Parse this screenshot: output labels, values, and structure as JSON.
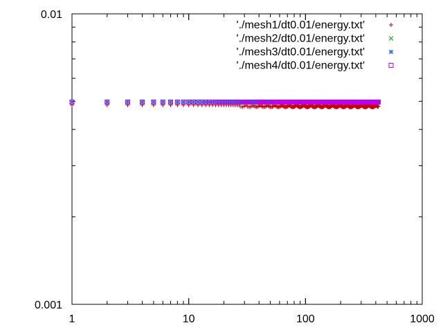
{
  "chart_data": {
    "type": "scatter",
    "x_scale": "log",
    "y_scale": "log",
    "xlim": [
      1,
      1000
    ],
    "ylim": [
      0.001,
      0.01
    ],
    "x_tick_labels": [
      "1",
      "10",
      "100",
      "1000"
    ],
    "x_tick_values": [
      1,
      10,
      100,
      1000
    ],
    "y_tick_labels": [
      "0.001",
      "0.01"
    ],
    "y_tick_values": [
      0.001,
      0.01
    ],
    "grid": false,
    "legend_position": "top-right",
    "series": [
      {
        "name": "'./mesh1/dt0.01/energy.txt'",
        "marker": "plus",
        "color": "#cc0000",
        "x_range": [
          1,
          420
        ],
        "y_base": 0.00485,
        "oscillation": {
          "amplitude": 8e-05,
          "starts_at_x": 28
        }
      },
      {
        "name": "'./mesh2/dt0.01/energy.txt'",
        "marker": "cross",
        "color": "#00aa00",
        "x_range": [
          1,
          420
        ],
        "y_base": 0.00497
      },
      {
        "name": "'./mesh3/dt0.01/energy.txt'",
        "marker": "asterisk",
        "color": "#1e6fe0",
        "x_range": [
          1,
          420
        ],
        "y_base": 0.00497
      },
      {
        "name": "'./mesh4/dt0.01/energy.txt'",
        "marker": "square",
        "color": "#bb00ee",
        "x_range": [
          1,
          420
        ],
        "y_base": 0.00497
      }
    ]
  }
}
